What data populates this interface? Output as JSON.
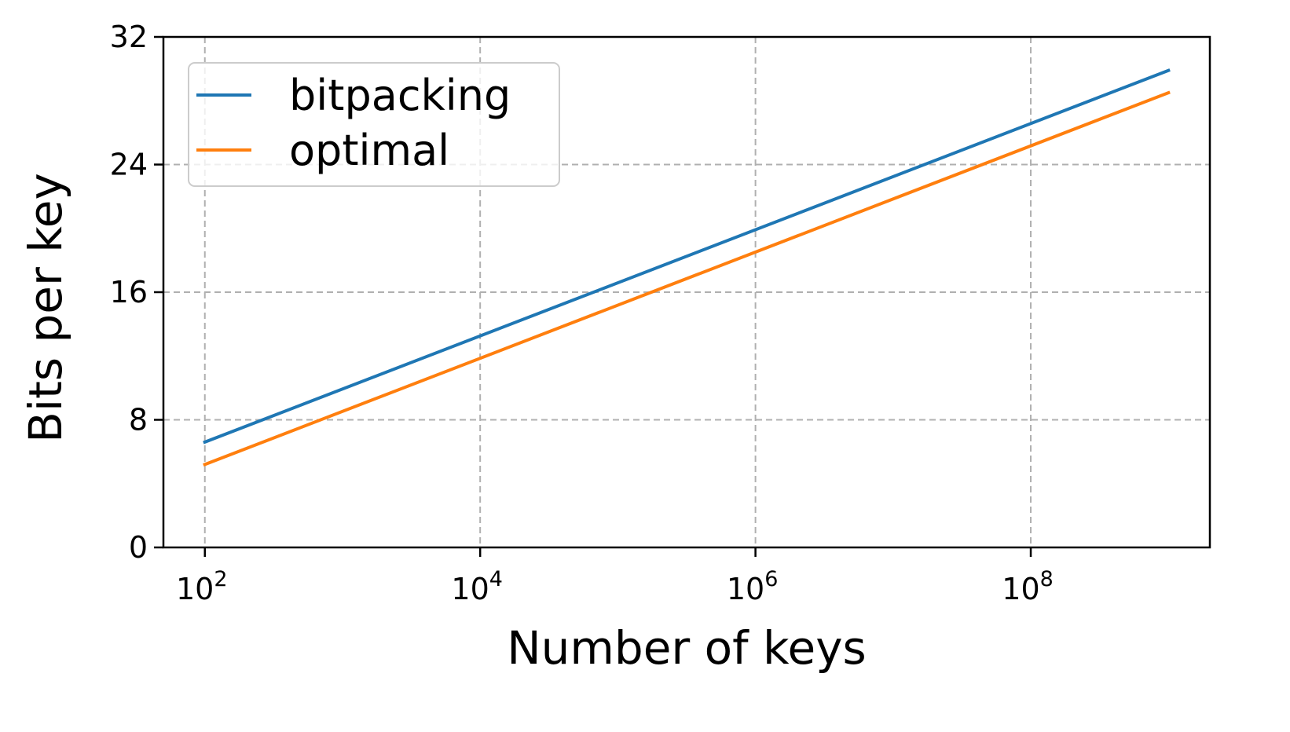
{
  "chart_data": {
    "type": "line",
    "title": "",
    "xlabel": "Number of keys",
    "ylabel": "Bits per key",
    "xscale": "log10",
    "xlim": [
      50,
      2000000000
    ],
    "ylim": [
      0,
      32
    ],
    "xticks": [
      {
        "value": 100,
        "base": "10",
        "exp": "2"
      },
      {
        "value": 10000,
        "base": "10",
        "exp": "4"
      },
      {
        "value": 1000000,
        "base": "10",
        "exp": "6"
      },
      {
        "value": 100000000,
        "base": "10",
        "exp": "8"
      }
    ],
    "yticks": [
      0,
      8,
      16,
      24,
      32
    ],
    "grid": true,
    "legend_position": "upper-left",
    "series": [
      {
        "name": "bitpacking",
        "color": "#1f77b4",
        "x": [
          100,
          1000000000
        ],
        "y": [
          6.6,
          29.9
        ]
      },
      {
        "name": "optimal",
        "color": "#ff7f0e",
        "x": [
          100,
          1000000000
        ],
        "y": [
          5.2,
          28.5
        ]
      }
    ]
  }
}
